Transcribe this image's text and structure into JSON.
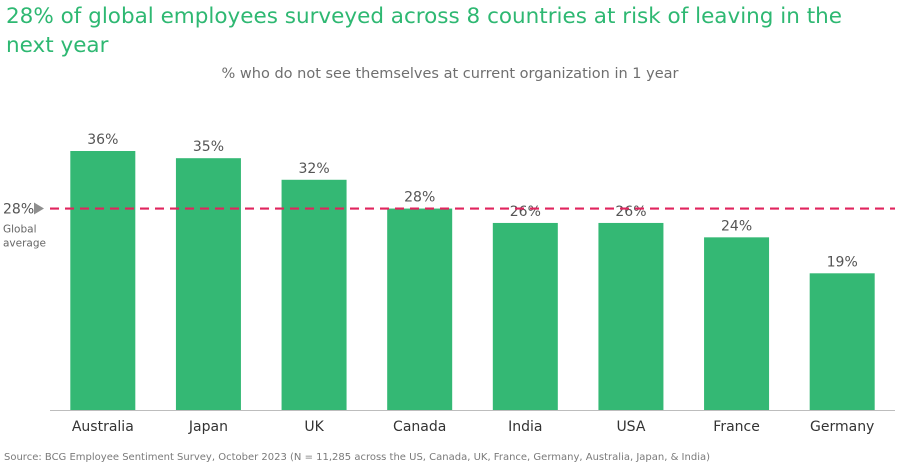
{
  "title": "28% of global employees surveyed across 8 countries at risk of leaving in the next year",
  "subtitle": "% who do not see themselves at current organization in 1 year",
  "source": "Source: BCG Employee Sentiment Survey, October 2023 (N = 11,285 across the US, Canada, UK, France, Germany, Australia, Japan, & India)",
  "colors": {
    "bar": "#34b874",
    "average_line": "#e0245e",
    "title": "#2eb872",
    "label_text": "#555555",
    "marker": "#8f8f8f"
  },
  "chart_data": {
    "type": "bar",
    "categories": [
      "Australia",
      "Japan",
      "UK",
      "Canada",
      "India",
      "USA",
      "France",
      "Germany"
    ],
    "values": [
      36,
      35,
      32,
      28,
      26,
      26,
      24,
      19
    ],
    "data_labels": [
      "36%",
      "35%",
      "32%",
      "28%",
      "26%",
      "26%",
      "24%",
      "19%"
    ],
    "ylim": [
      0,
      36
    ],
    "grid": false,
    "reference_line": {
      "value": 28,
      "label": "28%",
      "caption_lines": [
        "Global",
        "average"
      ]
    }
  }
}
